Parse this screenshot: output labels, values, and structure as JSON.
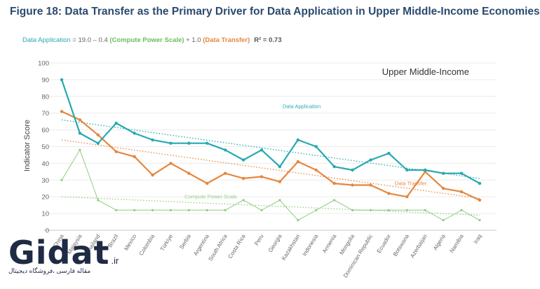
{
  "chart_data": {
    "type": "line",
    "title": "Figure 18: Data Transfer as the Primary Driver for Data Application in Upper Middle-Income Economies",
    "formula": {
      "prefix": "Data Application",
      "middle1": " = 19.0 – 0.4 ",
      "compute_term": "(Compute Power Scale)",
      "middle2": " + 1.0 ",
      "transfer_term": "(Data Transfer)",
      "r2": "R² = 0.73"
    },
    "panel_label": "Upper Middle-Income",
    "ylabel": "Indicator Score",
    "xlabel": "",
    "ylim": [
      0,
      100
    ],
    "yticks": [
      0,
      10,
      20,
      30,
      40,
      50,
      60,
      70,
      80,
      90,
      100
    ],
    "grid": true,
    "categories": [
      "China",
      "Malaysia",
      "Thailand",
      "Brazil",
      "Mexico",
      "Colombia",
      "Türkiye",
      "Serbia",
      "Argentina",
      "South Africa",
      "Costa Rica",
      "Peru",
      "Georgia",
      "Kazakhstan",
      "Indonesia",
      "Armenia",
      "Mongolia",
      "Dominican Republic",
      "Ecuador",
      "Botswana",
      "Azerbaijan",
      "Algeria",
      "Namibia",
      "Iraq"
    ],
    "series": [
      {
        "name": "Data Application",
        "color": "#27a9b1",
        "values": [
          90,
          58,
          52,
          64,
          58,
          54,
          52,
          52,
          52,
          48,
          42,
          48,
          38,
          54,
          50,
          38,
          36,
          42,
          46,
          36,
          36,
          34,
          34,
          28
        ]
      },
      {
        "name": "Data Transfer",
        "color": "#e5873f",
        "values": [
          71,
          66,
          57,
          47,
          44,
          33,
          40,
          34,
          28,
          34,
          31,
          32,
          29,
          41,
          36,
          28,
          27,
          27,
          22,
          20,
          35,
          25,
          23,
          18
        ]
      },
      {
        "name": "Compute Power Scale",
        "color": "#8fce7f",
        "values": [
          30,
          48,
          18,
          12,
          12,
          12,
          12,
          12,
          12,
          12,
          18,
          12,
          18,
          6,
          12,
          18,
          12,
          12,
          12,
          12,
          12,
          6,
          12,
          6
        ]
      }
    ],
    "trendlines": [
      {
        "name": "Data Application",
        "start": 66,
        "end": 31
      },
      {
        "name": "Data Transfer",
        "start": 54,
        "end": 19
      },
      {
        "name": "Compute Power Scale",
        "start": 20,
        "end": 9
      }
    ],
    "annotations": [
      {
        "text": "Data Application",
        "series": "Data Application",
        "x_index": 13.2,
        "y": 73
      },
      {
        "text": "Data Transfer",
        "series": "Data Transfer",
        "x_index": 19.2,
        "y": 27
      },
      {
        "text": "Compute Power Scale",
        "series": "Compute Power Scale",
        "x_index": 8.2,
        "y": 19
      }
    ]
  },
  "watermark": {
    "logo": "Gidat",
    "domain": ".ir",
    "tagline": "مقاله فارسی ،فروشگاه دیجیتال"
  }
}
